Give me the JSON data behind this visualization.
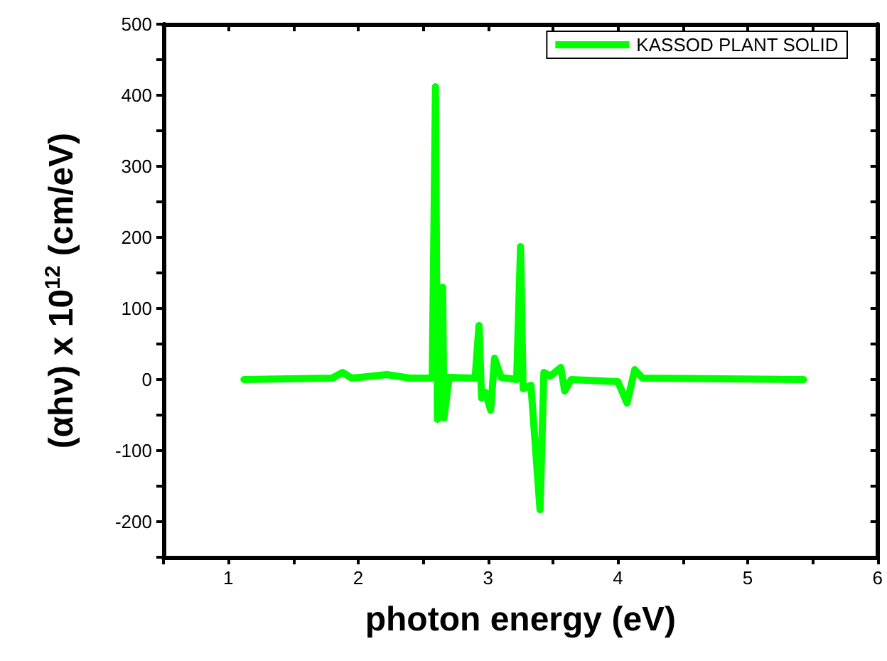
{
  "chart_data": {
    "type": "line",
    "xlabel": "photon energy (eV)",
    "ylabel": "(αhν) x 10$^{12}$ (cm/eV)",
    "xlim": [
      0.5,
      6
    ],
    "ylim": [
      -250,
      500
    ],
    "xticks": [
      {
        "value": 0.5,
        "label": null
      },
      1,
      {
        "value": 1.5,
        "label": null
      },
      2,
      {
        "value": 2.5,
        "label": null
      },
      3,
      {
        "value": 3.5,
        "label": null
      },
      4,
      {
        "value": 4.5,
        "label": null
      },
      5,
      {
        "value": 5.5,
        "label": null
      },
      6
    ],
    "yticks": [
      {
        "value": -250,
        "label": null
      },
      -200,
      {
        "value": -150,
        "label": null
      },
      -100,
      {
        "value": -50,
        "label": null
      },
      0,
      {
        "value": 50,
        "label": null
      },
      100,
      {
        "value": 150,
        "label": null
      },
      200,
      {
        "value": 250,
        "label": null
      },
      300,
      {
        "value": 350,
        "label": null
      },
      400,
      {
        "value": 450,
        "label": null
      },
      500
    ],
    "grid": false,
    "legend": "top right",
    "marker": "none",
    "line_style": "solid",
    "series": [
      {
        "name": "KASSOD PLANT SOLID",
        "color": "#00ff00",
        "x": [
          1.12,
          1.8,
          1.88,
          1.95,
          2.22,
          2.4,
          2.57,
          2.595,
          2.61,
          2.65,
          2.66,
          2.7,
          2.9,
          2.93,
          2.95,
          2.98,
          3.02,
          3.05,
          3.1,
          3.22,
          3.25,
          3.27,
          3.33,
          3.4,
          3.43,
          3.48,
          3.56,
          3.59,
          3.64,
          4.0,
          4.07,
          4.13,
          4.19,
          5.43
        ],
        "values": [
          0,
          2,
          10,
          2,
          7,
          2,
          2,
          412,
          -56,
          130,
          -54,
          3,
          2,
          76,
          -26,
          -18,
          -43,
          30,
          3,
          0,
          187,
          -13,
          -8,
          -183,
          10,
          5,
          17,
          -16,
          0,
          -3,
          -33,
          14,
          2,
          0
        ]
      }
    ]
  }
}
